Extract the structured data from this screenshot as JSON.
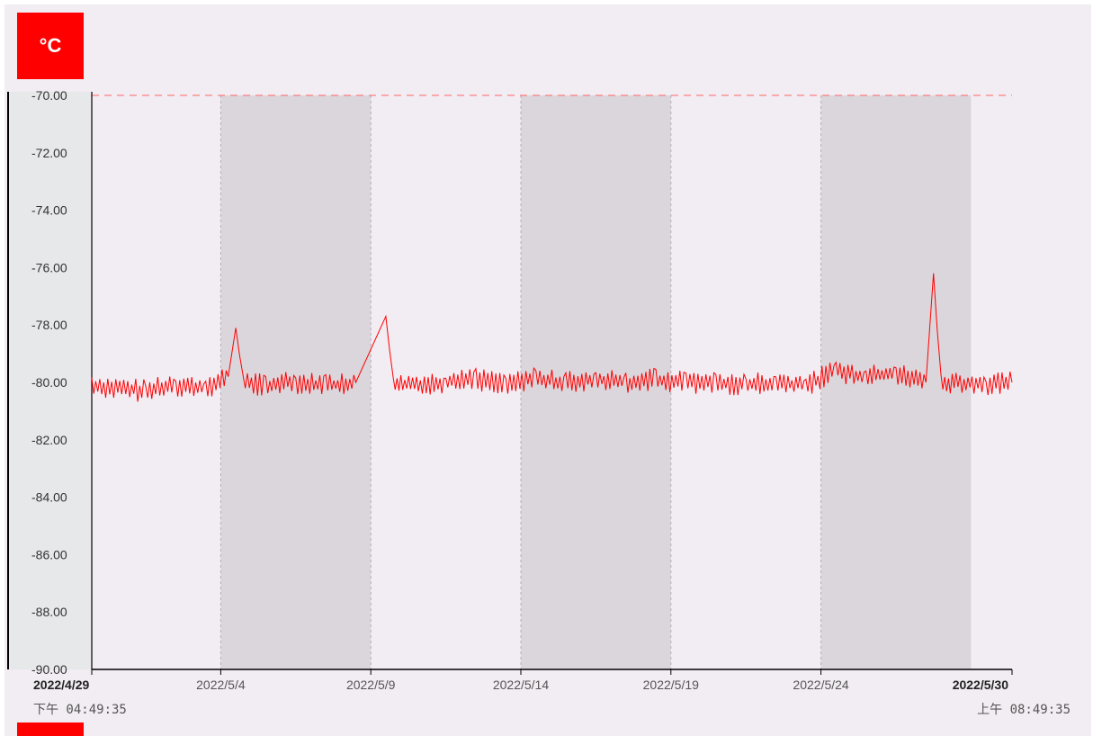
{
  "unit_label": "°C",
  "colors": {
    "series": "#ff0000",
    "band": "#dbd6db",
    "plot_bg": "#f2ecf3",
    "axis_panel": "#e6e8e9"
  },
  "chart_data": {
    "type": "line",
    "title": "",
    "xlabel": "",
    "ylabel": "°C",
    "ylim": [
      -90,
      -70
    ],
    "xlim": [
      "2022-04-29 16:49:35",
      "2022-05-30 08:49:35"
    ],
    "y_ticks": [
      "-70.00",
      "-72.00",
      "-74.00",
      "-76.00",
      "-78.00",
      "-80.00",
      "-82.00",
      "-84.00",
      "-86.00",
      "-88.00",
      "-90.00"
    ],
    "x_ticks": [
      {
        "label": "2022/4/29",
        "sub": "下午 04:49:35",
        "date": "2022-04-29 16:49:35",
        "bold": true
      },
      {
        "label": "2022/5/4",
        "date": "2022-05-04 00:00:00"
      },
      {
        "label": "2022/5/9",
        "date": "2022-05-09 00:00:00"
      },
      {
        "label": "2022/5/14",
        "date": "2022-05-14 00:00:00"
      },
      {
        "label": "2022/5/19",
        "date": "2022-05-19 00:00:00"
      },
      {
        "label": "2022/5/24",
        "date": "2022-05-24 00:00:00"
      },
      {
        "label": "2022/5/30",
        "sub": "上午 08:49:35",
        "date": "2022-05-30 08:49:35",
        "bold": true
      }
    ],
    "shaded_bands": [
      [
        "2022-05-04 00:00:00",
        "2022-05-09 00:00:00"
      ],
      [
        "2022-05-14 00:00:00",
        "2022-05-19 00:00:00"
      ],
      [
        "2022-05-24 00:00:00",
        "2022-05-29 00:00:00"
      ]
    ],
    "limit_lines": [
      -70,
      -90
    ],
    "series": [
      {
        "x": [
          "2022-04-29 16:49:35",
          "2022-04-30 12:00:00",
          "2022-05-01 12:00:00",
          "2022-05-02 12:00:00",
          "2022-05-03 12:00:00",
          "2022-05-04 06:00:00",
          "2022-05-04 12:00:00",
          "2022-05-04 18:00:00",
          "2022-05-05 12:00:00",
          "2022-05-06 12:00:00",
          "2022-05-07 12:00:00",
          "2022-05-08 12:00:00",
          "2022-05-09 12:00:00",
          "2022-05-09 18:00:00",
          "2022-05-10 00:00:00",
          "2022-05-11 12:00:00",
          "2022-05-12 12:00:00",
          "2022-05-13 12:00:00",
          "2022-05-14 12:00:00",
          "2022-05-15 12:00:00",
          "2022-05-16 12:00:00",
          "2022-05-17 12:00:00",
          "2022-05-18 12:00:00",
          "2022-05-19 12:00:00",
          "2022-05-20 12:00:00",
          "2022-05-21 12:00:00",
          "2022-05-22 12:00:00",
          "2022-05-23 12:00:00",
          "2022-05-24 12:00:00",
          "2022-05-25 12:00:00",
          "2022-05-26 12:00:00",
          "2022-05-27 12:00:00",
          "2022-05-27 18:00:00",
          "2022-05-28 00:00:00",
          "2022-05-28 12:00:00",
          "2022-05-29 12:00:00",
          "2022-05-30 08:49:35"
        ],
        "y": [
          -80.1,
          -80.2,
          -80.3,
          -80.1,
          -80.2,
          -79.8,
          -78.1,
          -80.0,
          -80.1,
          -80.0,
          -80.1,
          -80.0,
          -77.7,
          -80.0,
          -80.1,
          -80.0,
          -79.9,
          -80.0,
          -79.9,
          -80.0,
          -79.9,
          -80.0,
          -79.9,
          -80.0,
          -80.0,
          -80.1,
          -80.0,
          -80.1,
          -79.6,
          -79.8,
          -79.7,
          -80.0,
          -76.2,
          -80.1,
          -80.0,
          -80.1,
          -80.0
        ]
      }
    ]
  }
}
